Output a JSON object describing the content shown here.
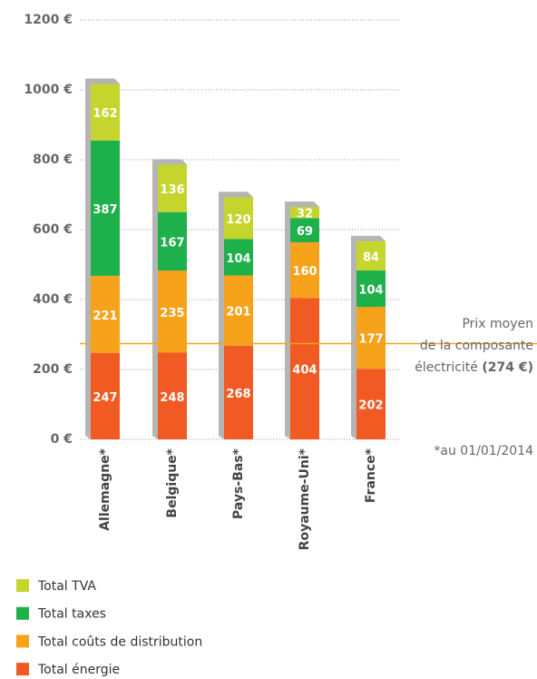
{
  "chart_data": {
    "type": "stacked_bar",
    "categories": [
      "Allemagne*",
      "Belgique*",
      "Pays-Bas*",
      "Royaume-Uni*",
      "France*"
    ],
    "series": [
      {
        "name": "Total énergie",
        "color": "#f15a22",
        "values": [
          247,
          248,
          268,
          404,
          202
        ]
      },
      {
        "name": "Total coûts de distribution",
        "color": "#f7a21b",
        "values": [
          221,
          235,
          201,
          160,
          177
        ]
      },
      {
        "name": "Total taxes",
        "color": "#1db04b",
        "values": [
          387,
          167,
          104,
          69,
          104
        ]
      },
      {
        "name": "Total TVA",
        "color": "#c5d52e",
        "values": [
          162,
          136,
          120,
          32,
          84
        ]
      }
    ],
    "ylim": [
      0,
      1200
    ],
    "yticks": [
      {
        "value": 0,
        "label": "0 €"
      },
      {
        "value": 200,
        "label": "200 €"
      },
      {
        "value": 400,
        "label": "400 €"
      },
      {
        "value": 600,
        "label": "600 €"
      },
      {
        "value": 800,
        "label": "800 €"
      },
      {
        "value": 1000,
        "label": "1000 €"
      },
      {
        "value": 1200,
        "label": "1200 €"
      }
    ],
    "grid": true,
    "reference_line": {
      "value": 274,
      "color": "#f7a21b",
      "label_lines": [
        "Prix moyen",
        "de la composante",
        "électricité"
      ],
      "label_value": "(274 €)"
    },
    "footnote": "*au 01/01/2014",
    "legend": "bottom-left"
  }
}
